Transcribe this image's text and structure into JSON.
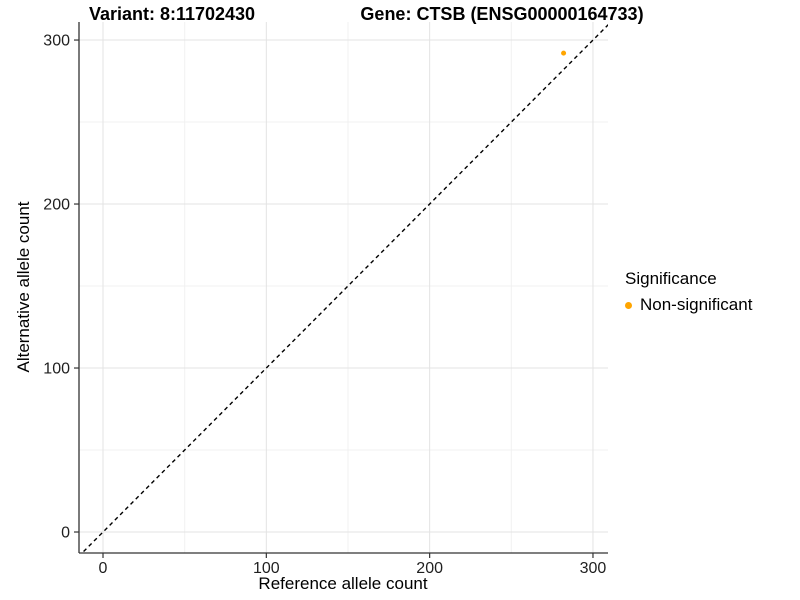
{
  "titles": {
    "variant": "Variant: 8:11702430",
    "gene": "Gene: CTSB (ENSG00000164733)"
  },
  "axes": {
    "x_label": "Reference allele count",
    "y_label": "Alternative allele count"
  },
  "legend": {
    "title": "Significance",
    "items": [
      {
        "label": "Non-significant",
        "color": "#FFA500"
      }
    ]
  },
  "chart_data": {
    "type": "scatter",
    "title_left": "Variant: 8:11702430",
    "title_right": "Gene: CTSB (ENSG00000164733)",
    "xlabel": "Reference allele count",
    "ylabel": "Alternative allele count",
    "x_ticks": [
      0,
      100,
      200,
      300
    ],
    "y_ticks": [
      0,
      100,
      200,
      300
    ],
    "x_minor_ticks": [
      50,
      150,
      250
    ],
    "y_minor_ticks": [
      50,
      150,
      250
    ],
    "xlim": [
      -14.7,
      309.2
    ],
    "ylim": [
      -12.8,
      311.0
    ],
    "grid": "on",
    "legend_position": "right-center",
    "series": [
      {
        "name": "Non-significant",
        "color": "#FFA500",
        "points": [
          {
            "x": 282,
            "y": 292
          }
        ]
      }
    ],
    "reference_line": {
      "kind": "identity y=x",
      "style": "dashed",
      "color": "#000000"
    },
    "style": {
      "axis_line_color": "#333333",
      "tick_color": "#333333",
      "tick_label_color": "#1f1f1f",
      "grid_major_color": "#e3e3e3",
      "grid_minor_color": "#f1f1f1",
      "background": "#ffffff"
    }
  }
}
